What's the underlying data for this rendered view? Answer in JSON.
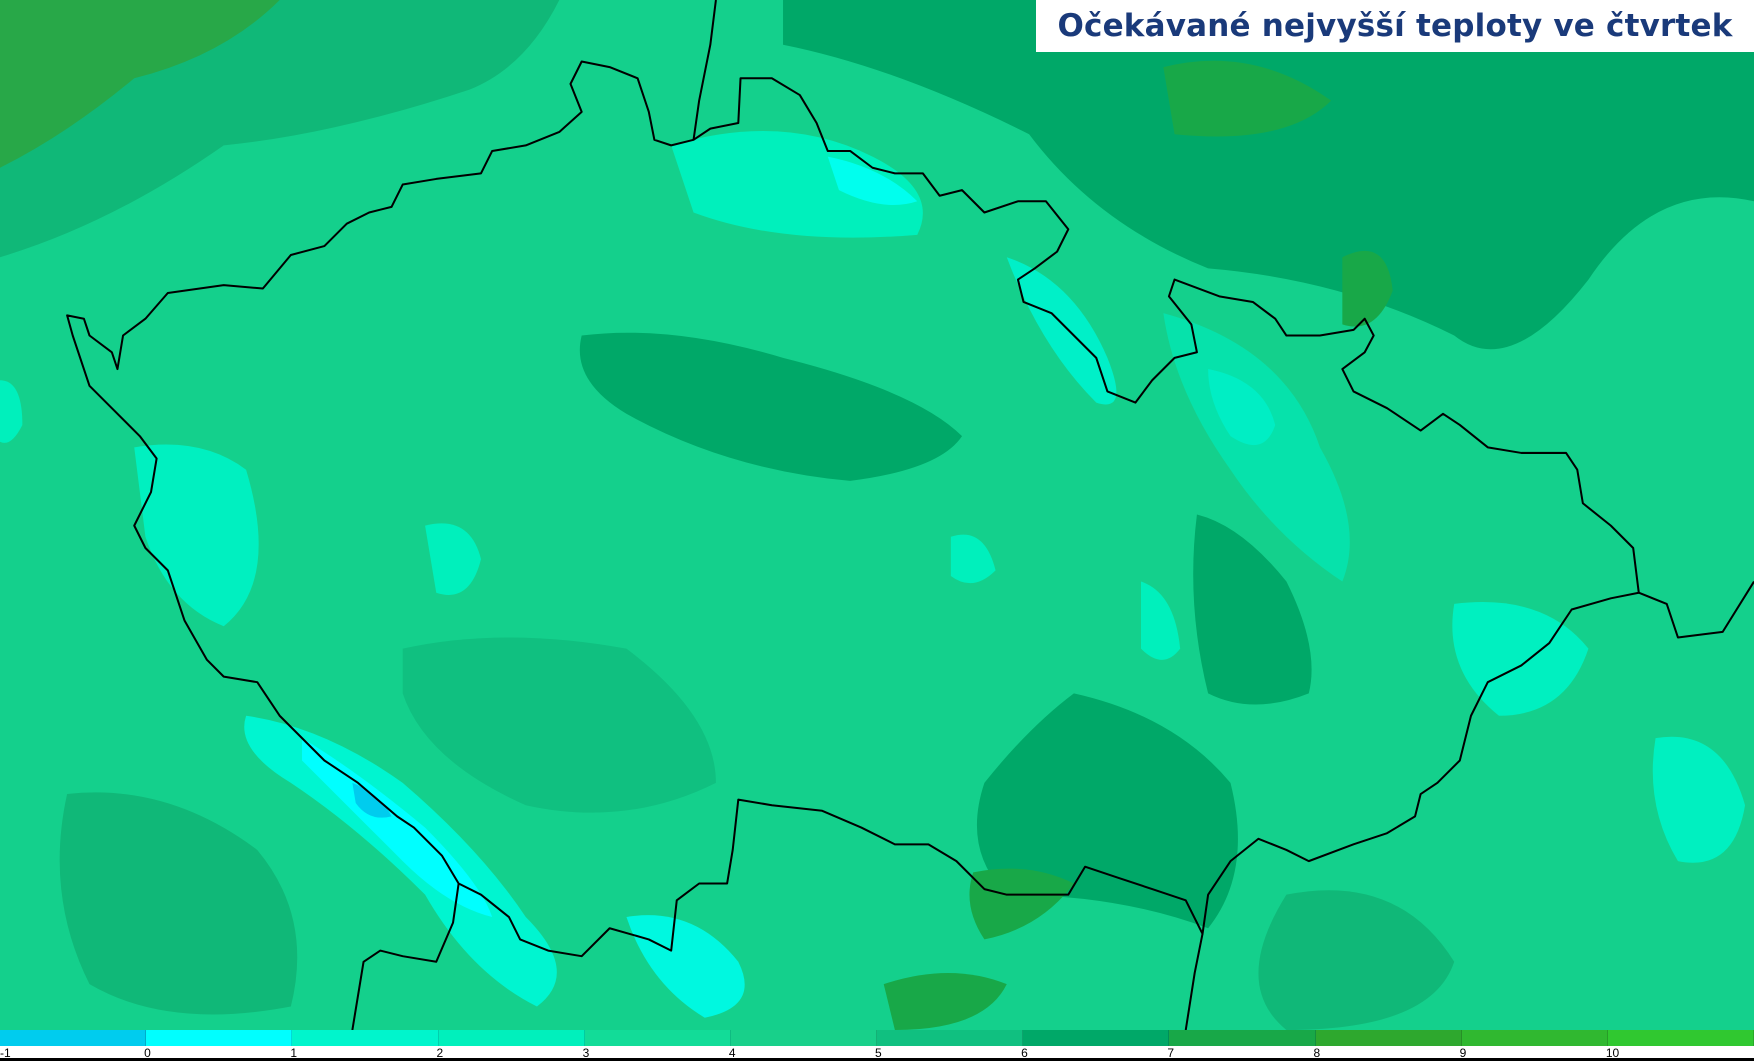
{
  "title": "Očekávané nejvyšší teploty ve čtvrtek",
  "colors": {
    "title_text": "#1a3a7a",
    "border_line": "#000000",
    "base_field": "#14d08c"
  },
  "legend": {
    "ticks": [
      "-1",
      "0",
      "1",
      "2",
      "3",
      "4",
      "5",
      "6",
      "7",
      "8",
      "9",
      "10"
    ],
    "colors": [
      "#00ccee",
      "#00ffff",
      "#00f5cc",
      "#00f0bc",
      "#12dc98",
      "#18d08a",
      "#10c080",
      "#00a868",
      "#18a848",
      "#2ea82e",
      "#30b830",
      "#30c830"
    ]
  }
}
